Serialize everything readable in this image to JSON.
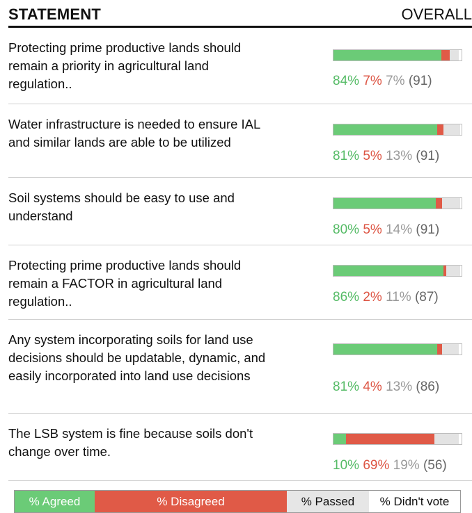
{
  "chart_data": {
    "type": "bar",
    "stacked": true,
    "header": {
      "left": "STATEMENT",
      "right": "OVERALL"
    },
    "colors": {
      "agreed": "#6bcb77",
      "disagreed": "#e05a47",
      "passed": "#e3e3e3",
      "didnt_vote": "#ffffff"
    },
    "rows": [
      {
        "statement": "Protecting prime productive lands should remain a priority in agricultural land regulation..",
        "agreed": 84,
        "disagreed": 7,
        "passed": 7,
        "count": 91
      },
      {
        "statement": "Water infrastructure is needed to ensure IAL and similar lands are able to be utilized",
        "agreed": 81,
        "disagreed": 5,
        "passed": 13,
        "count": 91
      },
      {
        "statement": "Soil systems should be easy to use and understand",
        "agreed": 80,
        "disagreed": 5,
        "passed": 14,
        "count": 91
      },
      {
        "statement": "Protecting prime productive lands should remain a FACTOR in agricultural land regulation..",
        "agreed": 86,
        "disagreed": 2,
        "passed": 11,
        "count": 87
      },
      {
        "statement": "Any system incorporating soils for land use decisions should be updatable, dynamic, and easily incorporated into land use decisions",
        "agreed": 81,
        "disagreed": 4,
        "passed": 13,
        "count": 86
      },
      {
        "statement": "The LSB system is fine because soils don't change over time.",
        "agreed": 10,
        "disagreed": 69,
        "passed": 19,
        "count": 56
      }
    ],
    "legend": [
      "% Agreed",
      "% Disagreed",
      "% Passed",
      "% Didn't vote"
    ]
  }
}
